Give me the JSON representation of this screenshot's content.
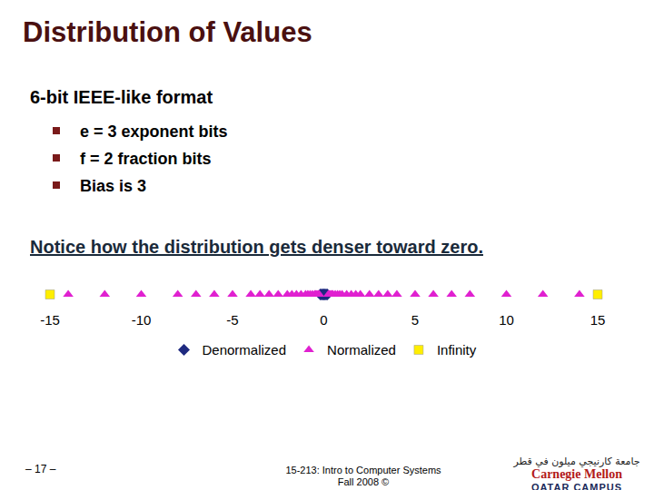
{
  "slide": {
    "title": "Distribution of Values",
    "heading": "6-bit IEEE-like format",
    "bullets": [
      "e = 3 exponent bits",
      "f = 2 fraction bits",
      "Bias is 3"
    ],
    "note": "Notice how the distribution gets denser toward zero.",
    "page": "– 17 –",
    "course": [
      "15-213: Intro to Computer Systems",
      "Fall 2008 ©"
    ],
    "logo": {
      "arabic": "جامعة كارنيجي ميلون في قطر",
      "name": "Carnegie Mellon",
      "campus": "QATAR CAMPUS"
    }
  },
  "chart_data": {
    "type": "scatter",
    "series": [
      {
        "name": "Denormalized",
        "color": "#1f2a80",
        "marker": "diamond",
        "x": [
          -0.1875,
          -0.125,
          -0.0625,
          0,
          0.0625,
          0.125,
          0.1875
        ]
      },
      {
        "name": "Normalized",
        "color": "#e020d0",
        "marker": "triangle-up",
        "x": [
          -14,
          -12,
          -10,
          -8,
          -7,
          -6,
          -5,
          -4,
          -3.5,
          -3,
          -2.5,
          -2,
          -1.75,
          -1.5,
          -1.25,
          -1,
          -0.875,
          -0.75,
          -0.625,
          -0.5,
          -0.4375,
          -0.375,
          -0.3125,
          -0.25,
          0.25,
          0.3125,
          0.375,
          0.4375,
          0.5,
          0.625,
          0.75,
          0.875,
          1,
          1.25,
          1.5,
          1.75,
          2,
          2.5,
          3,
          3.5,
          4,
          5,
          6,
          7,
          8,
          10,
          12,
          14
        ]
      },
      {
        "name": "Infinity",
        "color": "#ffee00",
        "marker": "square",
        "x": [
          -15,
          15
        ]
      }
    ],
    "xlim": [
      -15,
      15
    ],
    "xticks": [
      -15,
      -10,
      -5,
      0,
      5,
      10,
      15
    ],
    "grid": false,
    "tick_labels": "x",
    "legend": "bottom"
  }
}
